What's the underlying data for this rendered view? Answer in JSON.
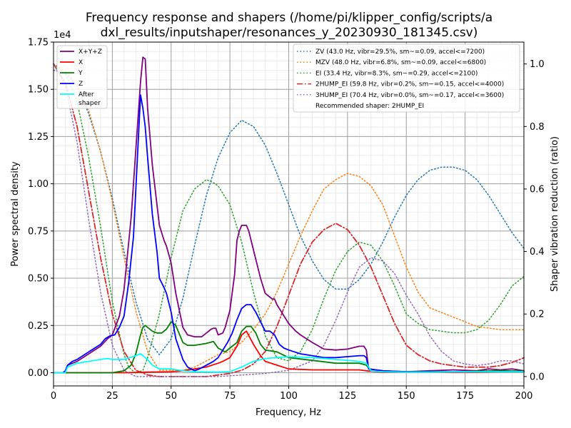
{
  "chart_data": {
    "type": "line",
    "title_line1": "Frequency response and shapers (/home/pi/klipper_config/scripts/a",
    "title_line2": "dxl_results/inputshaper/resonances_y_20230930_181345.csv)",
    "xlabel": "Frequency, Hz",
    "ylabel": "Power spectral density",
    "y2label": "Shaper vibration reduction (ratio)",
    "sci_label": "1e4",
    "xlim": [
      0,
      200
    ],
    "ylim": [
      -0.07,
      1.75
    ],
    "y2lim": [
      -0.03,
      1.07
    ],
    "x_ticks": [
      0,
      25,
      50,
      75,
      100,
      125,
      150,
      175,
      200
    ],
    "x_tick_labels": [
      "0",
      "25",
      "50",
      "75",
      "100",
      "125",
      "150",
      "175",
      "200"
    ],
    "y_ticks": [
      0,
      0.25,
      0.5,
      0.75,
      1.0,
      1.25,
      1.5,
      1.75
    ],
    "y_tick_labels": [
      "0.00",
      "0.25",
      "0.50",
      "0.75",
      "1.00",
      "1.25",
      "1.50",
      "1.75"
    ],
    "y2_ticks": [
      0,
      0.2,
      0.4,
      0.6,
      0.8,
      1.0
    ],
    "y2_tick_labels": [
      "0.0",
      "0.2",
      "0.4",
      "0.6",
      "0.8",
      "1.0"
    ],
    "grid": true,
    "legend_left_placement": "top-left",
    "legend_right_placement": "top-right",
    "recommended_text": "Recommended shaper: 2HUMP_EI",
    "psd_series": [
      {
        "name": "X+Y+Z",
        "color": "#800080",
        "x": [
          0,
          5,
          6,
          10,
          15,
          20,
          23,
          25,
          28,
          30,
          33,
          35,
          37,
          38,
          39,
          40,
          42,
          45,
          47,
          48,
          50,
          52,
          55,
          57,
          60,
          63,
          65,
          67,
          68,
          69,
          70,
          72,
          73,
          75,
          77,
          78,
          79,
          80,
          81,
          82,
          83,
          84,
          86,
          88,
          90,
          92,
          93,
          94,
          95,
          97,
          100,
          103,
          105,
          110,
          115,
          120,
          125,
          130,
          132,
          133,
          134,
          140,
          150,
          160,
          170,
          180,
          185,
          190,
          195,
          200
        ],
        "y": [
          0.0,
          0.0,
          0.04,
          0.06,
          0.1,
          0.14,
          0.18,
          0.2,
          0.3,
          0.44,
          0.82,
          1.18,
          1.54,
          1.67,
          1.66,
          1.4,
          1.1,
          0.78,
          0.7,
          0.67,
          0.58,
          0.42,
          0.24,
          0.2,
          0.19,
          0.19,
          0.21,
          0.23,
          0.235,
          0.235,
          0.2,
          0.21,
          0.24,
          0.33,
          0.52,
          0.7,
          0.75,
          0.78,
          0.78,
          0.78,
          0.75,
          0.7,
          0.6,
          0.5,
          0.42,
          0.4,
          0.39,
          0.39,
          0.36,
          0.32,
          0.26,
          0.22,
          0.2,
          0.16,
          0.125,
          0.12,
          0.125,
          0.14,
          0.14,
          0.12,
          0.02,
          0.01,
          0.005,
          0.01,
          0.015,
          0.01,
          0.02,
          0.015,
          0.02,
          0.01
        ]
      },
      {
        "name": "X",
        "color": "#ff0000",
        "x": [
          0,
          10,
          20,
          30,
          40,
          50,
          55,
          60,
          65,
          70,
          72,
          75,
          78,
          80,
          82,
          85,
          88,
          90,
          95,
          100,
          110,
          120,
          130,
          133,
          140,
          150,
          170,
          180,
          190,
          200
        ],
        "y": [
          0.0,
          0.0,
          0.0,
          0.0,
          0.003,
          0.005,
          0.01,
          0.02,
          0.03,
          0.05,
          0.06,
          0.08,
          0.14,
          0.2,
          0.22,
          0.15,
          0.09,
          0.06,
          0.04,
          0.02,
          0.015,
          0.015,
          0.015,
          0.01,
          0.003,
          0.003,
          0.003,
          0.003,
          0.005,
          0.005
        ]
      },
      {
        "name": "Y",
        "color": "#008000",
        "x": [
          0,
          10,
          20,
          25,
          30,
          33,
          35,
          37,
          38,
          39,
          40,
          42,
          44,
          46,
          48,
          50,
          52,
          55,
          57,
          60,
          65,
          68,
          70,
          73,
          75,
          78,
          80,
          82,
          84,
          86,
          88,
          90,
          95,
          100,
          110,
          120,
          130,
          133,
          135,
          150,
          160,
          170,
          175,
          180,
          190,
          200
        ],
        "y": [
          0.0,
          0.0,
          0.0,
          0.0,
          0.01,
          0.04,
          0.1,
          0.2,
          0.24,
          0.25,
          0.24,
          0.22,
          0.21,
          0.21,
          0.23,
          0.27,
          0.25,
          0.16,
          0.145,
          0.145,
          0.155,
          0.165,
          0.13,
          0.11,
          0.13,
          0.16,
          0.22,
          0.245,
          0.245,
          0.21,
          0.15,
          0.12,
          0.11,
          0.08,
          0.065,
          0.05,
          0.05,
          0.04,
          0.01,
          0.005,
          0.005,
          0.005,
          0.005,
          0.008,
          0.01,
          0.008
        ]
      },
      {
        "name": "Z",
        "color": "#0000ff",
        "x": [
          0,
          4,
          5,
          6,
          8,
          10,
          15,
          20,
          22,
          24,
          26,
          28,
          30,
          32,
          34,
          36,
          37,
          38,
          39,
          40,
          42,
          44,
          45,
          47,
          48,
          50,
          52,
          55,
          57,
          60,
          62,
          65,
          68,
          70,
          72,
          74,
          76,
          78,
          80,
          82,
          84,
          86,
          88,
          90,
          92,
          94,
          96,
          98,
          100,
          105,
          110,
          115,
          120,
          125,
          130,
          132,
          133,
          134,
          140,
          150,
          160,
          170,
          180,
          190,
          200
        ],
        "y": [
          0.0,
          0.0,
          0.01,
          0.04,
          0.06,
          0.07,
          0.11,
          0.15,
          0.18,
          0.195,
          0.2,
          0.24,
          0.3,
          0.48,
          0.72,
          1.22,
          1.47,
          1.4,
          1.3,
          1.14,
          0.84,
          0.64,
          0.5,
          0.45,
          0.42,
          0.32,
          0.18,
          0.07,
          0.03,
          0.01,
          0.02,
          0.04,
          0.06,
          0.08,
          0.12,
          0.16,
          0.21,
          0.28,
          0.34,
          0.36,
          0.36,
          0.32,
          0.27,
          0.22,
          0.22,
          0.2,
          0.15,
          0.13,
          0.12,
          0.1,
          0.09,
          0.08,
          0.08,
          0.085,
          0.09,
          0.09,
          0.08,
          0.02,
          0.01,
          0.005,
          0.005,
          0.005,
          0.005,
          0.005,
          0.005
        ]
      },
      {
        "name": "After\nshaper",
        "color": "#00ffff",
        "x": [
          0,
          5,
          6,
          10,
          20,
          23,
          25,
          30,
          35,
          37,
          40,
          42,
          45,
          50,
          55,
          60,
          70,
          75,
          80,
          85,
          90,
          95,
          100,
          110,
          120,
          130,
          133,
          135,
          140,
          150,
          160,
          170,
          180,
          190,
          200
        ],
        "y": [
          0.0,
          0.0,
          0.03,
          0.05,
          0.07,
          0.075,
          0.07,
          0.07,
          0.09,
          0.1,
          0.07,
          0.04,
          0.02,
          0.02,
          0.01,
          0.005,
          0.003,
          0.005,
          0.03,
          0.06,
          0.075,
          0.08,
          0.085,
          0.08,
          0.07,
          0.06,
          0.05,
          0.01,
          0.005,
          0.003,
          0.003,
          0.005,
          0.005,
          0.005,
          0.005
        ]
      }
    ],
    "shaper_series": [
      {
        "name": "ZV (43.0 Hz, vibr=29.5%, sm~=0.09, accel<=7200)",
        "color": "#1f77b4",
        "dash": "dotted",
        "x": [
          0,
          5,
          10,
          15,
          20,
          25,
          30,
          35,
          40,
          45,
          50,
          55,
          60,
          65,
          70,
          75,
          80,
          85,
          90,
          95,
          100,
          105,
          110,
          115,
          120,
          125,
          130,
          135,
          140,
          145,
          150,
          155,
          160,
          165,
          170,
          175,
          180,
          185,
          190,
          195,
          200
        ],
        "y": [
          0.98,
          0.97,
          0.93,
          0.84,
          0.72,
          0.57,
          0.4,
          0.24,
          0.12,
          0.07,
          0.12,
          0.25,
          0.42,
          0.58,
          0.7,
          0.78,
          0.82,
          0.8,
          0.74,
          0.65,
          0.55,
          0.45,
          0.37,
          0.31,
          0.28,
          0.28,
          0.31,
          0.36,
          0.43,
          0.51,
          0.58,
          0.63,
          0.66,
          0.67,
          0.67,
          0.66,
          0.63,
          0.58,
          0.52,
          0.46,
          0.41
        ]
      },
      {
        "name": "MZV (48.0 Hz, vibr=6.8%, sm~=0.09, accel<=6800)",
        "color": "#ff7f0e",
        "dash": "dotted",
        "x": [
          0,
          5,
          10,
          15,
          20,
          25,
          30,
          35,
          40,
          45,
          50,
          55,
          60,
          65,
          70,
          75,
          80,
          85,
          90,
          95,
          100,
          105,
          110,
          115,
          120,
          125,
          130,
          135,
          140,
          145,
          150,
          155,
          160,
          170,
          180,
          190,
          200
        ],
        "y": [
          1.0,
          0.98,
          0.93,
          0.85,
          0.72,
          0.56,
          0.38,
          0.21,
          0.08,
          0.02,
          0.02,
          0.02,
          0.03,
          0.05,
          0.07,
          0.08,
          0.11,
          0.15,
          0.2,
          0.27,
          0.36,
          0.45,
          0.53,
          0.6,
          0.63,
          0.65,
          0.64,
          0.61,
          0.55,
          0.45,
          0.35,
          0.27,
          0.22,
          0.19,
          0.16,
          0.15,
          0.15
        ]
      },
      {
        "name": "EI (33.4 Hz, vibr=8.3%, sm~=0.29, accel<=2100)",
        "color": "#2ca02c",
        "dash": "dotted",
        "x": [
          0,
          5,
          10,
          15,
          20,
          25,
          30,
          32,
          35,
          38,
          40,
          45,
          50,
          55,
          60,
          65,
          68,
          70,
          75,
          80,
          85,
          90,
          95,
          100,
          105,
          110,
          115,
          120,
          125,
          130,
          135,
          140,
          145,
          150,
          155,
          160,
          165,
          170,
          175,
          180,
          185,
          190,
          195,
          200
        ],
        "y": [
          1.0,
          0.97,
          0.88,
          0.7,
          0.48,
          0.24,
          0.07,
          0.03,
          0.01,
          0.02,
          0.06,
          0.2,
          0.38,
          0.53,
          0.6,
          0.63,
          0.62,
          0.61,
          0.55,
          0.43,
          0.27,
          0.13,
          0.06,
          0.05,
          0.08,
          0.15,
          0.25,
          0.34,
          0.4,
          0.43,
          0.42,
          0.37,
          0.29,
          0.2,
          0.17,
          0.15,
          0.145,
          0.14,
          0.14,
          0.15,
          0.18,
          0.23,
          0.29,
          0.32
        ]
      },
      {
        "name": "2HUMP_EI (59.8 Hz, vibr=0.2%, sm~=0.15, accel<=4000)",
        "color": "#d62728",
        "dash": "dashdot",
        "x": [
          0,
          5,
          10,
          15,
          20,
          25,
          30,
          35,
          40,
          45,
          50,
          55,
          60,
          65,
          70,
          75,
          80,
          85,
          90,
          95,
          100,
          105,
          110,
          115,
          120,
          125,
          130,
          135,
          140,
          145,
          150,
          155,
          160,
          165,
          170,
          175,
          180,
          185,
          190,
          195,
          200
        ],
        "y": [
          1.0,
          0.94,
          0.8,
          0.59,
          0.38,
          0.2,
          0.08,
          0.02,
          0.005,
          0.0,
          0.0,
          0.0,
          0.0,
          0.0,
          0.005,
          0.01,
          0.02,
          0.04,
          0.08,
          0.16,
          0.26,
          0.36,
          0.43,
          0.47,
          0.49,
          0.47,
          0.42,
          0.35,
          0.26,
          0.17,
          0.1,
          0.07,
          0.05,
          0.04,
          0.035,
          0.03,
          0.03,
          0.03,
          0.035,
          0.045,
          0.06
        ]
      },
      {
        "name": "3HUMP_EI (70.4 Hz, vibr=0.0%, sm~=0.17, accel<=3600)",
        "color": "#9467bd",
        "dash": "dotted",
        "x": [
          0,
          5,
          10,
          15,
          20,
          25,
          30,
          35,
          40,
          45,
          50,
          60,
          70,
          80,
          90,
          100,
          110,
          115,
          120,
          125,
          130,
          135,
          140,
          145,
          150,
          155,
          160,
          165,
          170,
          175,
          180,
          185,
          190,
          195,
          200
        ],
        "y": [
          1.0,
          0.93,
          0.75,
          0.5,
          0.27,
          0.1,
          0.02,
          0.0,
          0.0,
          0.0,
          0.0,
          0.0,
          0.0,
          0.005,
          0.01,
          0.02,
          0.05,
          0.1,
          0.18,
          0.27,
          0.35,
          0.38,
          0.37,
          0.33,
          0.26,
          0.2,
          0.13,
          0.08,
          0.05,
          0.04,
          0.035,
          0.04,
          0.05,
          0.05,
          0.04
        ]
      }
    ]
  }
}
